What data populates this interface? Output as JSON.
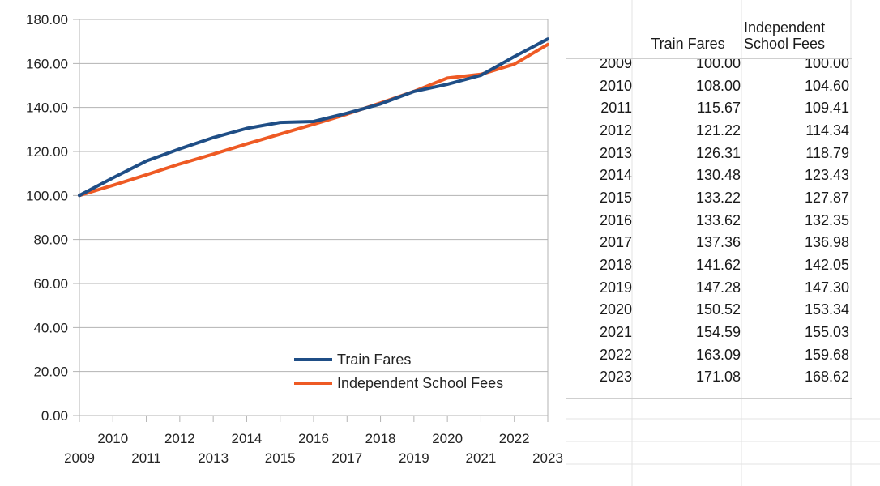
{
  "chart_data": {
    "type": "line",
    "x": [
      2009,
      2010,
      2011,
      2012,
      2013,
      2014,
      2015,
      2016,
      2017,
      2018,
      2019,
      2020,
      2021,
      2022,
      2023
    ],
    "series": [
      {
        "name": "Train Fares",
        "color": "#1f4e86",
        "values": [
          100.0,
          108.0,
          115.67,
          121.22,
          126.31,
          130.48,
          133.22,
          133.62,
          137.36,
          141.62,
          147.28,
          150.52,
          154.59,
          163.09,
          171.08
        ]
      },
      {
        "name": "Independent School Fees",
        "color": "#ee5a24",
        "values": [
          100.0,
          104.6,
          109.41,
          114.34,
          118.79,
          123.43,
          127.87,
          132.35,
          136.98,
          142.05,
          147.3,
          153.34,
          155.03,
          159.68,
          168.62
        ]
      }
    ],
    "ylim": [
      0,
      180
    ],
    "yticks": [
      "0.00",
      "20.00",
      "40.00",
      "60.00",
      "80.00",
      "100.00",
      "120.00",
      "140.00",
      "160.00",
      "180.00"
    ],
    "xticks_upper": [
      "2010",
      "2012",
      "2014",
      "2016",
      "2018",
      "2020",
      "2022"
    ],
    "xticks_lower": [
      "2009",
      "2011",
      "2013",
      "2015",
      "2017",
      "2019",
      "2021",
      "2023"
    ],
    "grid": true,
    "legend_position": "bottom-right"
  },
  "table": {
    "headers": {
      "train": "Train Fares",
      "school_line1": "Independent",
      "school_line2": "School Fees"
    },
    "rows": [
      {
        "year": "2009",
        "train": "100.00",
        "school": "100.00"
      },
      {
        "year": "2010",
        "train": "108.00",
        "school": "104.60"
      },
      {
        "year": "2011",
        "train": "115.67",
        "school": "109.41"
      },
      {
        "year": "2012",
        "train": "121.22",
        "school": "114.34"
      },
      {
        "year": "2013",
        "train": "126.31",
        "school": "118.79"
      },
      {
        "year": "2014",
        "train": "130.48",
        "school": "123.43"
      },
      {
        "year": "2015",
        "train": "133.22",
        "school": "127.87"
      },
      {
        "year": "2016",
        "train": "133.62",
        "school": "132.35"
      },
      {
        "year": "2017",
        "train": "137.36",
        "school": "136.98"
      },
      {
        "year": "2018",
        "train": "141.62",
        "school": "142.05"
      },
      {
        "year": "2019",
        "train": "147.28",
        "school": "147.30"
      },
      {
        "year": "2020",
        "train": "150.52",
        "school": "153.34"
      },
      {
        "year": "2021",
        "train": "154.59",
        "school": "155.03"
      },
      {
        "year": "2022",
        "train": "163.09",
        "school": "159.68"
      },
      {
        "year": "2023",
        "train": "171.08",
        "school": "168.62"
      }
    ]
  }
}
